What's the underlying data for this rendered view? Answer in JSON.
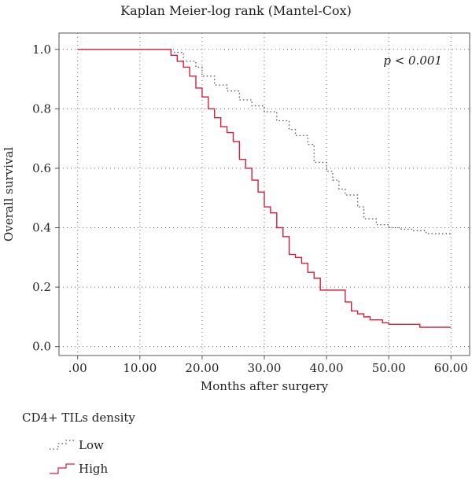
{
  "chart_data": {
    "type": "line",
    "title": "Kaplan Meier-log rank (Mantel-Cox)",
    "xlabel": "Months after surgery",
    "ylabel": "Overall survival",
    "xlim": [
      -3,
      63
    ],
    "ylim": [
      -0.03,
      1.055
    ],
    "xticks": [
      0,
      10,
      20,
      30,
      40,
      50,
      60
    ],
    "xtick_labels": [
      ".00",
      "10.00",
      "20.00",
      "30.00",
      "40.00",
      "50.00",
      "60.00"
    ],
    "yticks": [
      0.0,
      0.2,
      0.4,
      0.6,
      0.8,
      1.0
    ],
    "ytick_labels": [
      "0.0",
      "0.2",
      "0.4",
      "0.6",
      "0.8",
      "1.0"
    ],
    "grid": true,
    "annotation": "p < 0.001",
    "legend_title": "CD4+ TILs density",
    "series": [
      {
        "name": "Low",
        "style": "dotted",
        "color": "#555555",
        "x": [
          0,
          15,
          17,
          19,
          20,
          22,
          24,
          26,
          28,
          30,
          32,
          34,
          35,
          37,
          38,
          40,
          41,
          42,
          43,
          45,
          46,
          48,
          50,
          52,
          54,
          56,
          60
        ],
        "y": [
          1.0,
          0.99,
          0.96,
          0.94,
          0.91,
          0.88,
          0.86,
          0.83,
          0.81,
          0.79,
          0.76,
          0.73,
          0.71,
          0.68,
          0.62,
          0.59,
          0.56,
          0.53,
          0.51,
          0.47,
          0.43,
          0.41,
          0.4,
          0.395,
          0.39,
          0.38,
          0.375
        ]
      },
      {
        "name": "High",
        "style": "solid",
        "color": "#d81e3a",
        "x": [
          0,
          15,
          16,
          17,
          18,
          19,
          20,
          21,
          22,
          23,
          24,
          25,
          26,
          27,
          28,
          29,
          30,
          31,
          32,
          33,
          34,
          35,
          36,
          37,
          38,
          39,
          40,
          43,
          44,
          45,
          46,
          47,
          48,
          49,
          50,
          51,
          55,
          60
        ],
        "y": [
          1.0,
          0.98,
          0.96,
          0.94,
          0.91,
          0.87,
          0.84,
          0.8,
          0.77,
          0.74,
          0.72,
          0.69,
          0.63,
          0.6,
          0.56,
          0.52,
          0.47,
          0.45,
          0.4,
          0.37,
          0.31,
          0.3,
          0.28,
          0.25,
          0.23,
          0.19,
          0.19,
          0.15,
          0.12,
          0.11,
          0.1,
          0.09,
          0.09,
          0.08,
          0.075,
          0.075,
          0.065,
          0.065
        ]
      }
    ]
  }
}
